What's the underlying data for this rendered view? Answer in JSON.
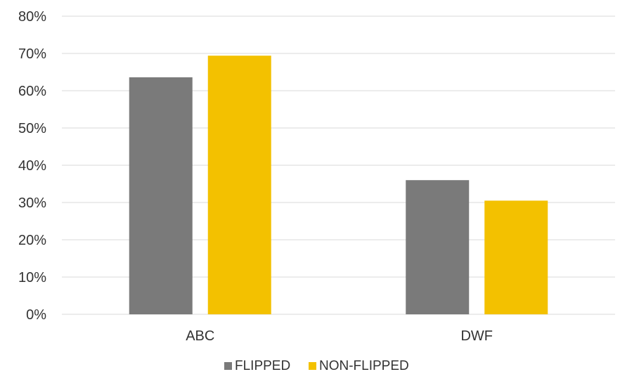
{
  "chart_data": {
    "type": "bar",
    "title": "",
    "xlabel": "",
    "ylabel": "",
    "categories": [
      "ABC",
      "DWF"
    ],
    "series": [
      {
        "name": "FLIPPED",
        "color": "#7a7a7a",
        "values": [
          0.636,
          0.36
        ]
      },
      {
        "name": "NON-FLIPPED",
        "color": "#f3c100",
        "values": [
          0.694,
          0.305
        ]
      }
    ],
    "ylim": [
      0,
      0.8
    ],
    "yticks": [
      {
        "value": 0.0,
        "label": "0%"
      },
      {
        "value": 0.1,
        "label": "10%"
      },
      {
        "value": 0.2,
        "label": "20%"
      },
      {
        "value": 0.3,
        "label": "30%"
      },
      {
        "value": 0.4,
        "label": "40%"
      },
      {
        "value": 0.5,
        "label": "50%"
      },
      {
        "value": 0.6,
        "label": "60%"
      },
      {
        "value": 0.7,
        "label": "70%"
      },
      {
        "value": 0.8,
        "label": "80%"
      }
    ],
    "grid": true,
    "legend_position": "bottom"
  }
}
